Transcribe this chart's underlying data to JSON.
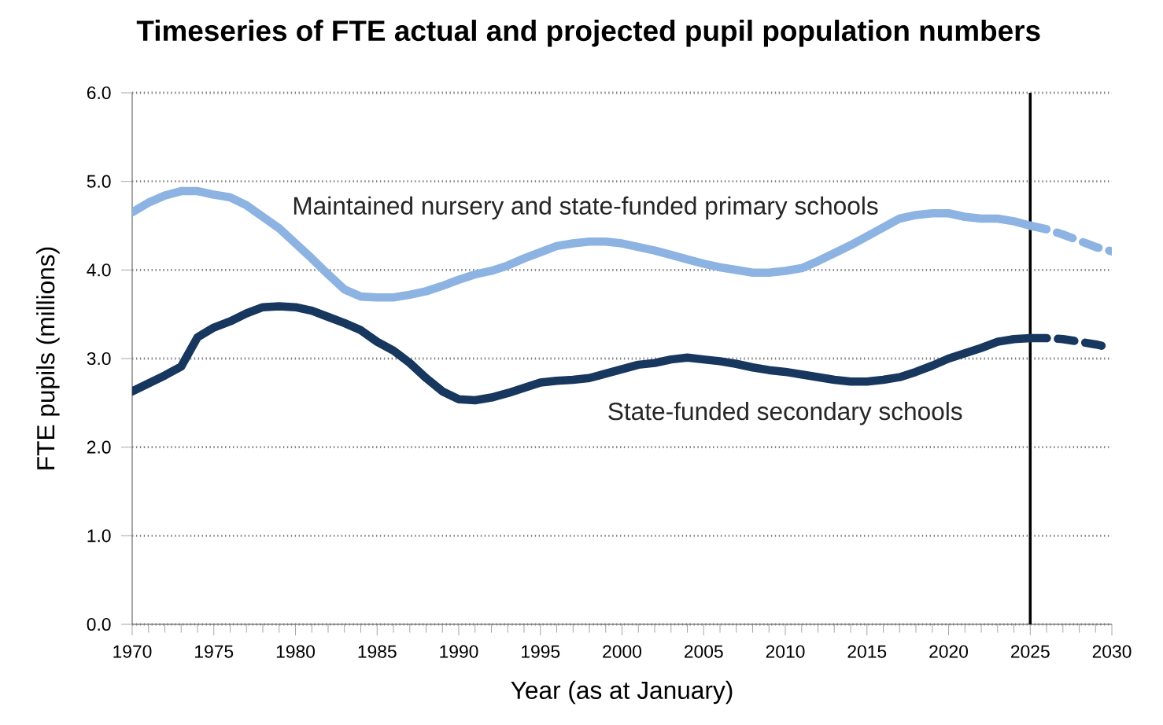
{
  "chart_data": {
    "type": "line",
    "title": "Timeseries of FTE actual and projected pupil population numbers",
    "xlabel": "Year (as at January)",
    "ylabel": "FTE pupils (millions)",
    "xlim": [
      1970,
      2030
    ],
    "xticks": [
      1970,
      1975,
      1980,
      1985,
      1990,
      1995,
      2000,
      2005,
      2010,
      2015,
      2020,
      2025,
      2030
    ],
    "ylim": [
      0,
      6
    ],
    "yticks": [
      {
        "value": 0,
        "label": "0.0"
      },
      {
        "value": 1,
        "label": "1.0"
      },
      {
        "value": 2,
        "label": "2.0"
      },
      {
        "value": 3,
        "label": "3.0"
      },
      {
        "value": 4,
        "label": "4.0"
      },
      {
        "value": 5,
        "label": "5.0"
      },
      {
        "value": 6,
        "label": "6.0"
      }
    ],
    "grid": "y",
    "marker": "none",
    "ref_lines": [
      {
        "axis": "x",
        "value": 2025,
        "color": "#000000"
      }
    ],
    "series": [
      {
        "name": "Maintained nursery and state-funded primary schools",
        "color": "#8db3e2",
        "line_style": "solid",
        "x": [
          1970,
          1971,
          1972,
          1973,
          1974,
          1975,
          1976,
          1977,
          1978,
          1979,
          1980,
          1981,
          1982,
          1983,
          1984,
          1985,
          1986,
          1987,
          1988,
          1989,
          1990,
          1991,
          1992,
          1993,
          1994,
          1995,
          1996,
          1997,
          1998,
          1999,
          2000,
          2001,
          2002,
          2003,
          2004,
          2005,
          2006,
          2007,
          2008,
          2009,
          2010,
          2011,
          2012,
          2013,
          2014,
          2015,
          2016,
          2017,
          2018,
          2019,
          2020,
          2021,
          2022,
          2023,
          2024,
          2025
        ],
        "values": [
          4.65,
          4.76,
          4.84,
          4.89,
          4.89,
          4.85,
          4.82,
          4.73,
          4.6,
          4.47,
          4.3,
          4.13,
          3.95,
          3.78,
          3.7,
          3.69,
          3.69,
          3.72,
          3.76,
          3.82,
          3.89,
          3.95,
          3.99,
          4.05,
          4.13,
          4.2,
          4.27,
          4.3,
          4.32,
          4.32,
          4.3,
          4.26,
          4.22,
          4.17,
          4.12,
          4.07,
          4.03,
          4.0,
          3.97,
          3.97,
          3.99,
          4.02,
          4.1,
          4.19,
          4.28,
          4.38,
          4.48,
          4.58,
          4.62,
          4.64,
          4.64,
          4.6,
          4.58,
          4.58,
          4.55,
          4.5
        ]
      },
      {
        "color": "#8db3e2",
        "line_style": "dashed",
        "x": [
          2025,
          2026,
          2027,
          2028,
          2029,
          2030
        ],
        "values": [
          4.5,
          4.46,
          4.4,
          4.33,
          4.26,
          4.21
        ]
      },
      {
        "name": "State-funded secondary schools",
        "color": "#17375e",
        "line_style": "solid",
        "x": [
          1970,
          1971,
          1972,
          1973,
          1974,
          1975,
          1976,
          1977,
          1978,
          1979,
          1980,
          1981,
          1982,
          1983,
          1984,
          1985,
          1986,
          1987,
          1988,
          1989,
          1990,
          1991,
          1992,
          1993,
          1994,
          1995,
          1996,
          1997,
          1998,
          1999,
          2000,
          2001,
          2002,
          2003,
          2004,
          2005,
          2006,
          2007,
          2008,
          2009,
          2010,
          2011,
          2012,
          2013,
          2014,
          2015,
          2016,
          2017,
          2018,
          2019,
          2020,
          2021,
          2022,
          2023,
          2024,
          2025
        ],
        "values": [
          2.63,
          2.72,
          2.81,
          2.91,
          3.24,
          3.35,
          3.42,
          3.51,
          3.58,
          3.59,
          3.58,
          3.54,
          3.47,
          3.4,
          3.32,
          3.19,
          3.09,
          2.95,
          2.78,
          2.63,
          2.54,
          2.53,
          2.56,
          2.61,
          2.67,
          2.73,
          2.75,
          2.76,
          2.78,
          2.83,
          2.88,
          2.93,
          2.95,
          2.99,
          3.01,
          2.99,
          2.97,
          2.94,
          2.9,
          2.87,
          2.85,
          2.82,
          2.79,
          2.76,
          2.74,
          2.74,
          2.76,
          2.79,
          2.85,
          2.92,
          3.0,
          3.06,
          3.12,
          3.19,
          3.22,
          3.23
        ]
      },
      {
        "color": "#17375e",
        "line_style": "dashed",
        "x": [
          2025,
          2026,
          2027,
          2028,
          2029,
          2030
        ],
        "values": [
          3.23,
          3.23,
          3.22,
          3.19,
          3.16,
          3.12
        ]
      }
    ]
  }
}
